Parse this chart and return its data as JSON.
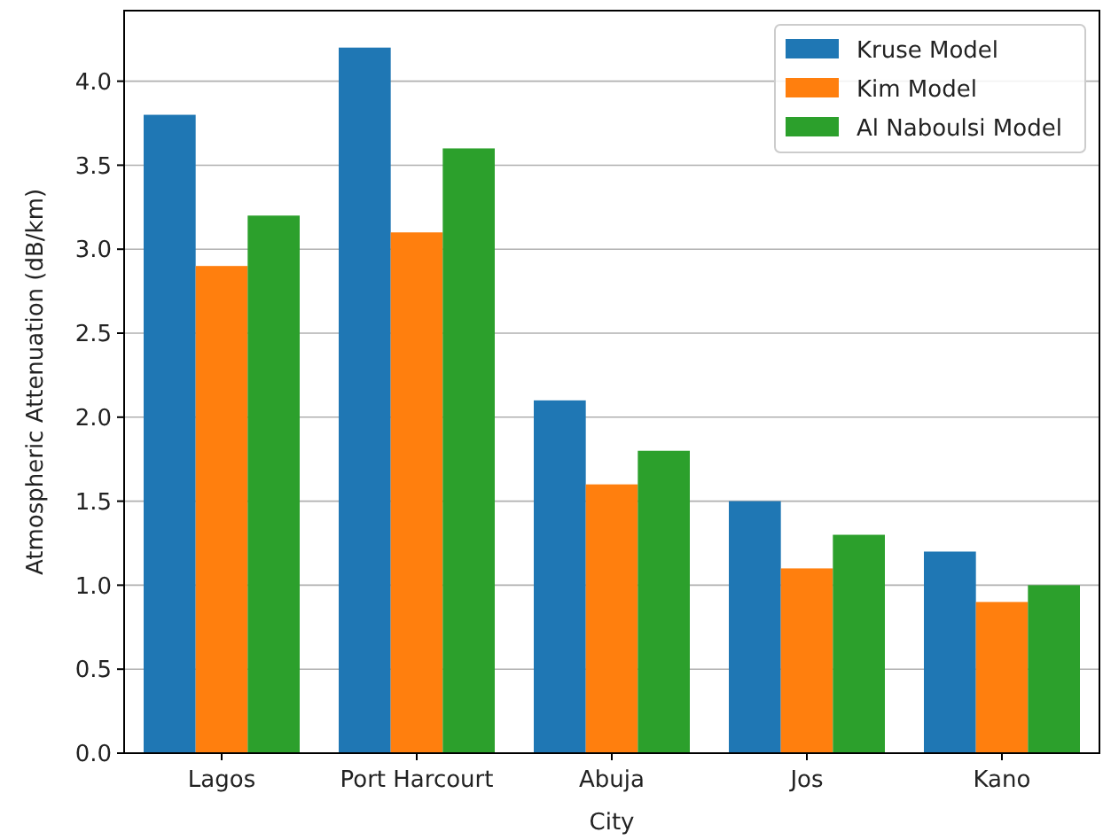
{
  "chart_data": {
    "type": "bar",
    "xlabel": "City",
    "ylabel": "Atmospheric Attenuation (dB/km)",
    "categories": [
      "Lagos",
      "Port Harcourt",
      "Abuja",
      "Jos",
      "Kano"
    ],
    "series": [
      {
        "name": "Kruse Model",
        "color": "#1f77b4",
        "values": [
          3.8,
          4.2,
          2.1,
          1.5,
          1.2
        ]
      },
      {
        "name": "Kim Model",
        "color": "#ff7f0e",
        "values": [
          2.9,
          3.1,
          1.6,
          1.1,
          0.9
        ]
      },
      {
        "name": "Al Naboulsi Model",
        "color": "#2ca02c",
        "values": [
          3.2,
          3.6,
          1.8,
          1.3,
          1.0
        ]
      }
    ],
    "ylim": [
      0,
      4.42
    ],
    "yticks": [
      {
        "value": 0,
        "label": "0.0"
      },
      {
        "value": 0.5,
        "label": "0.5"
      },
      {
        "value": 1,
        "label": "1.0"
      },
      {
        "value": 1.5,
        "label": "1.5"
      },
      {
        "value": 2,
        "label": "2.0"
      },
      {
        "value": 2.5,
        "label": "2.5"
      },
      {
        "value": 3,
        "label": "3.0"
      },
      {
        "value": 3.5,
        "label": "3.5"
      },
      {
        "value": 4,
        "label": "4.0"
      }
    ],
    "grid": "y",
    "legend": "top right"
  }
}
